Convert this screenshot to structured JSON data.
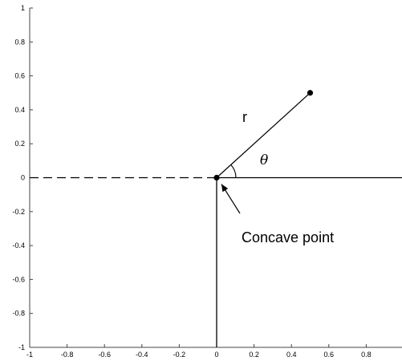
{
  "chart_data": {
    "type": "diagram",
    "xlim": [
      -1,
      1
    ],
    "ylim": [
      -1,
      1
    ],
    "x_ticks": [
      -1,
      -0.8,
      -0.6,
      -0.4,
      -0.2,
      0,
      0.2,
      0.4,
      0.6,
      0.8
    ],
    "y_ticks": [
      1,
      0.8,
      0.6,
      0.4,
      0.2,
      0,
      -0.2,
      -0.4,
      -0.6,
      -0.8,
      -1
    ],
    "x_tick_labels": [
      "-1",
      "-0.8",
      "-0.6",
      "-0.4",
      "-0.2",
      "0",
      "0.2",
      "0.4",
      "0.6",
      "0.8"
    ],
    "y_tick_labels": [
      "1",
      "0.8",
      "0.6",
      "0.4",
      "0.2",
      "0",
      "-0.2",
      "-0.4",
      "-0.6",
      "-0.8",
      "-1"
    ],
    "concave_point": [
      0,
      0
    ],
    "end_point": [
      0.5,
      0.5
    ],
    "boundary_right": [
      [
        0,
        0
      ],
      [
        1,
        0
      ]
    ],
    "boundary_down": [
      [
        0,
        0
      ],
      [
        0,
        -1
      ]
    ],
    "dashed_extension": [
      [
        -1,
        0
      ],
      [
        0,
        0
      ]
    ],
    "labels": {
      "r": "r",
      "theta": "θ",
      "concave": "Concave point"
    },
    "colors": {
      "line": "#000000",
      "axis": "#444444"
    }
  }
}
